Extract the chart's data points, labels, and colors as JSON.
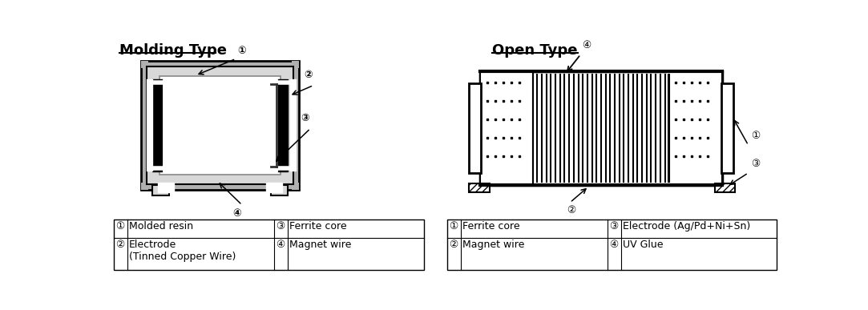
{
  "title_left": "Molding Type",
  "title_right": "Open Type",
  "bg_color": "#ffffff",
  "molding_table": [
    [
      "①",
      "Molded resin",
      "③",
      "Ferrite core"
    ],
    [
      "②",
      "Electrode\n(Tinned Copper Wire)",
      "④",
      "Magnet wire"
    ]
  ],
  "open_table": [
    [
      "①",
      "Ferrite core",
      "③",
      "Electrode (Ag/Pd+Ni+Sn)"
    ],
    [
      "②",
      "Magnet wire",
      "④",
      "UV Glue"
    ]
  ],
  "gray_body": "#b0b0b0",
  "light_gray": "#d8d8d8",
  "dark_gray": "#404040",
  "mid_gray": "#888888"
}
